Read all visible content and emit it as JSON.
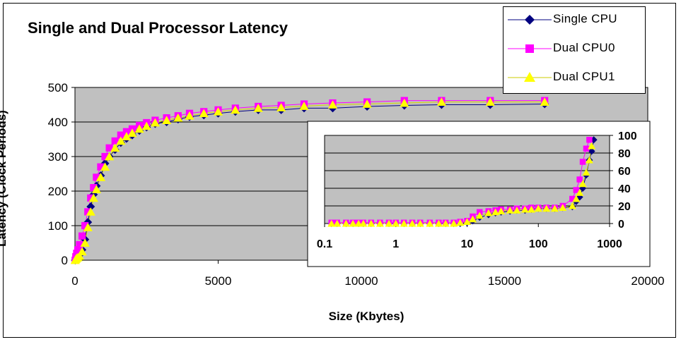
{
  "chart_data": [
    {
      "type": "line",
      "title": "Single and Dual Processor Latency",
      "xlabel": "Size (Kbytes)",
      "ylabel": "Latency (Clock Periods)",
      "xlim": [
        0,
        20000
      ],
      "ylim": [
        0,
        500
      ],
      "x_ticks": [
        "0",
        "5000",
        "10000",
        "15000",
        "20000"
      ],
      "y_ticks": [
        "0",
        "100",
        "200",
        "300",
        "400",
        "500"
      ],
      "grid": "horizontal",
      "background": "#c0c0c0",
      "legend_position": "top-right",
      "series": [
        {
          "name": "Single CPU",
          "color": "#000080",
          "marker": "diamond",
          "x": [
            8,
            30,
            60,
            100,
            160,
            250,
            350,
            450,
            550,
            650,
            750,
            900,
            1050,
            1200,
            1400,
            1600,
            1800,
            2000,
            2250,
            2500,
            2800,
            3200,
            3600,
            4000,
            4500,
            5000,
            5600,
            6400,
            7200,
            8000,
            9000,
            10200,
            11500,
            12800,
            14500,
            16400
          ],
          "y": [
            0,
            5,
            8,
            10,
            15,
            30,
            60,
            110,
            155,
            190,
            215,
            245,
            280,
            300,
            320,
            340,
            352,
            362,
            375,
            385,
            395,
            400,
            408,
            415,
            420,
            425,
            430,
            435,
            435,
            440,
            440,
            445,
            448,
            450,
            450,
            452
          ]
        },
        {
          "name": "Dual CPU0",
          "color": "#ff00ff",
          "marker": "square",
          "x": [
            8,
            30,
            60,
            100,
            160,
            250,
            350,
            450,
            550,
            650,
            750,
            900,
            1050,
            1200,
            1400,
            1600,
            1800,
            2000,
            2250,
            2500,
            2800,
            3200,
            3600,
            4000,
            4500,
            5000,
            5600,
            6400,
            7200,
            8000,
            9000,
            10200,
            11500,
            12800,
            14500,
            16400
          ],
          "y": [
            0,
            10,
            20,
            30,
            45,
            70,
            100,
            140,
            180,
            210,
            240,
            270,
            300,
            325,
            345,
            362,
            372,
            380,
            390,
            398,
            405,
            412,
            418,
            425,
            430,
            435,
            440,
            445,
            448,
            452,
            455,
            458,
            462,
            462,
            462,
            462
          ]
        },
        {
          "name": "Dual CPU1",
          "color": "#ffff00",
          "marker": "triangle",
          "x": [
            8,
            30,
            60,
            100,
            160,
            250,
            350,
            450,
            550,
            650,
            750,
            900,
            1050,
            1200,
            1400,
            1600,
            1800,
            2000,
            2250,
            2500,
            2800,
            3200,
            3600,
            4000,
            4500,
            5000,
            5600,
            6400,
            7200,
            8000,
            9000,
            10200,
            11500,
            12800,
            14500,
            16400
          ],
          "y": [
            0,
            3,
            6,
            8,
            12,
            25,
            50,
            95,
            140,
            180,
            205,
            240,
            270,
            300,
            325,
            345,
            358,
            368,
            380,
            388,
            398,
            405,
            412,
            418,
            425,
            430,
            435,
            440,
            442,
            446,
            450,
            452,
            455,
            458,
            458,
            458
          ]
        }
      ]
    },
    {
      "type": "line",
      "title": "",
      "xscale": "log",
      "xlim": [
        0.1,
        1000
      ],
      "ylim": [
        0,
        100
      ],
      "x_ticks": [
        "0.1",
        "1",
        "10",
        "100",
        "1000"
      ],
      "y_ticks": [
        "0",
        "20",
        "40",
        "60",
        "80",
        "100"
      ],
      "grid": "horizontal",
      "background": "#c0c0c0",
      "series": [
        {
          "name": "Single CPU",
          "color": "#000080",
          "marker": "diamond",
          "x": [
            0.125,
            0.15,
            0.2,
            0.25,
            0.3,
            0.35,
            0.45,
            0.6,
            0.8,
            1,
            1.3,
            1.7,
            2.2,
            3,
            4,
            5,
            6.5,
            8,
            10,
            12,
            15,
            20,
            25,
            30,
            40,
            50,
            65,
            80,
            100,
            130,
            170,
            220,
            300,
            340,
            380,
            420,
            470,
            520,
            560,
            600
          ],
          "y": [
            0,
            0,
            0,
            0,
            0,
            0,
            0,
            0,
            0,
            0,
            0,
            0,
            0,
            0,
            0,
            0,
            0,
            0,
            1,
            3,
            7,
            10,
            12,
            13,
            14,
            15,
            15,
            16,
            17,
            17,
            17,
            18,
            19,
            25,
            30,
            40,
            55,
            72,
            82,
            95
          ]
        },
        {
          "name": "Dual CPU0",
          "color": "#ff00ff",
          "marker": "square",
          "x": [
            0.125,
            0.15,
            0.2,
            0.25,
            0.3,
            0.35,
            0.45,
            0.6,
            0.8,
            1,
            1.3,
            1.7,
            2.2,
            3,
            4,
            5,
            6.5,
            8,
            10,
            12,
            15,
            20,
            25,
            30,
            40,
            50,
            65,
            80,
            100,
            130,
            170,
            220,
            300,
            340,
            380,
            420,
            470,
            520
          ],
          "y": [
            1,
            1,
            1,
            1,
            1,
            1,
            1,
            1,
            1,
            1,
            1,
            1,
            1,
            1,
            1,
            1,
            1,
            2,
            3,
            8,
            13,
            14,
            15,
            16,
            16,
            17,
            17,
            18,
            18,
            18,
            18,
            20,
            28,
            38,
            50,
            70,
            85,
            95
          ]
        },
        {
          "name": "Dual CPU1",
          "color": "#ffff00",
          "marker": "triangle",
          "x": [
            0.125,
            0.15,
            0.2,
            0.25,
            0.3,
            0.35,
            0.45,
            0.6,
            0.8,
            1,
            1.3,
            1.7,
            2.2,
            3,
            4,
            5,
            6.5,
            8,
            10,
            12,
            15,
            20,
            25,
            30,
            40,
            50,
            65,
            80,
            100,
            130,
            170,
            220,
            300,
            340,
            380,
            420,
            470,
            520,
            560
          ],
          "y": [
            0,
            0,
            0,
            0,
            0,
            0,
            0,
            0,
            0,
            0,
            0,
            0,
            0,
            0,
            0,
            0,
            0,
            1,
            2,
            5,
            9,
            12,
            13,
            14,
            15,
            15,
            16,
            16,
            17,
            17,
            17,
            18,
            20,
            28,
            35,
            45,
            58,
            72,
            88
          ]
        }
      ]
    }
  ]
}
